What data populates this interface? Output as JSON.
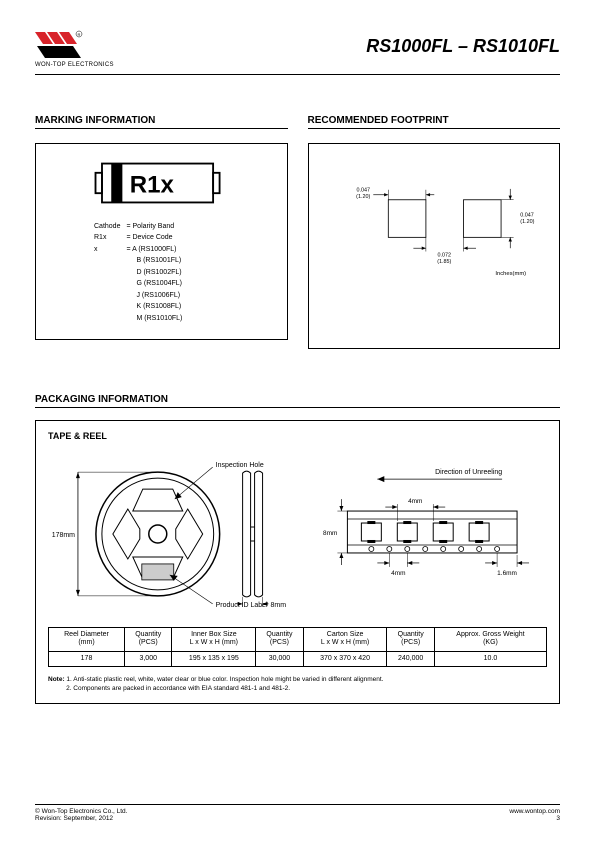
{
  "header": {
    "company": "WON-TOP ELECTRONICS",
    "title": "RS1000FL – RS1010FL",
    "logo_red": "#d8232a",
    "logo_black": "#000000"
  },
  "marking": {
    "heading": "MARKING INFORMATION",
    "code_text": "R1x",
    "legend": {
      "cathode_label": "Cathode",
      "cathode_val": "= Polarity Band",
      "r1x_label": "R1x",
      "r1x_val": "= Device Code",
      "x_label": "x",
      "x_vals": [
        "= A (RS1000FL)",
        "B (RS1001FL)",
        "D (RS1002FL)",
        "G (RS1004FL)",
        "J (RS1006FL)",
        "K (RS1008FL)",
        "M (RS1010FL)"
      ]
    }
  },
  "footprint": {
    "heading": "RECOMMENDED FOOTPRINT",
    "dim1_in": "0.047",
    "dim1_mm": "(1.20)",
    "dim2_in": "0.072",
    "dim2_mm": "(1.85)",
    "dim3_in": "0.047",
    "dim3_mm": "(1.20)",
    "unit_label": "Inches(mm)"
  },
  "packaging": {
    "heading": "PACKAGING INFORMATION",
    "tape_heading": "TAPE & REEL",
    "labels": {
      "inspection": "Inspection Hole",
      "product_id": "Product ID Label",
      "direction": "Direction of Unreeling"
    },
    "dims": {
      "reel_dia": "178mm",
      "tape_w": "8mm",
      "pitch1": "4mm",
      "pitch2": "4mm",
      "pitch3": "1.6mm",
      "tape_h": "8mm"
    },
    "table": {
      "headers": [
        "Reel Diameter\n(mm)",
        "Quantity\n(PCS)",
        "Inner Box Size\nL x W x H (mm)",
        "Quantity\n(PCS)",
        "Carton Size\nL x W x H (mm)",
        "Quantity\n(PCS)",
        "Approx. Gross Weight\n(KG)"
      ],
      "row": [
        "178",
        "3,000",
        "195 x 135 x 195",
        "30,000",
        "370 x 370 x 420",
        "240,000",
        "10.0"
      ]
    },
    "note_label": "Note:",
    "note1": "1. Anti-static plastic reel, white, water clear or blue color. Inspection hole might be varied in different alignment.",
    "note2": "2. Components are packed in accordance with EIA standard 481-1 and 481-2."
  },
  "footer": {
    "left1": "© Won-Top Electronics Co., Ltd.",
    "left2": "Revision: September, 2012",
    "right1": "www.wontop.com",
    "right2": "3"
  }
}
